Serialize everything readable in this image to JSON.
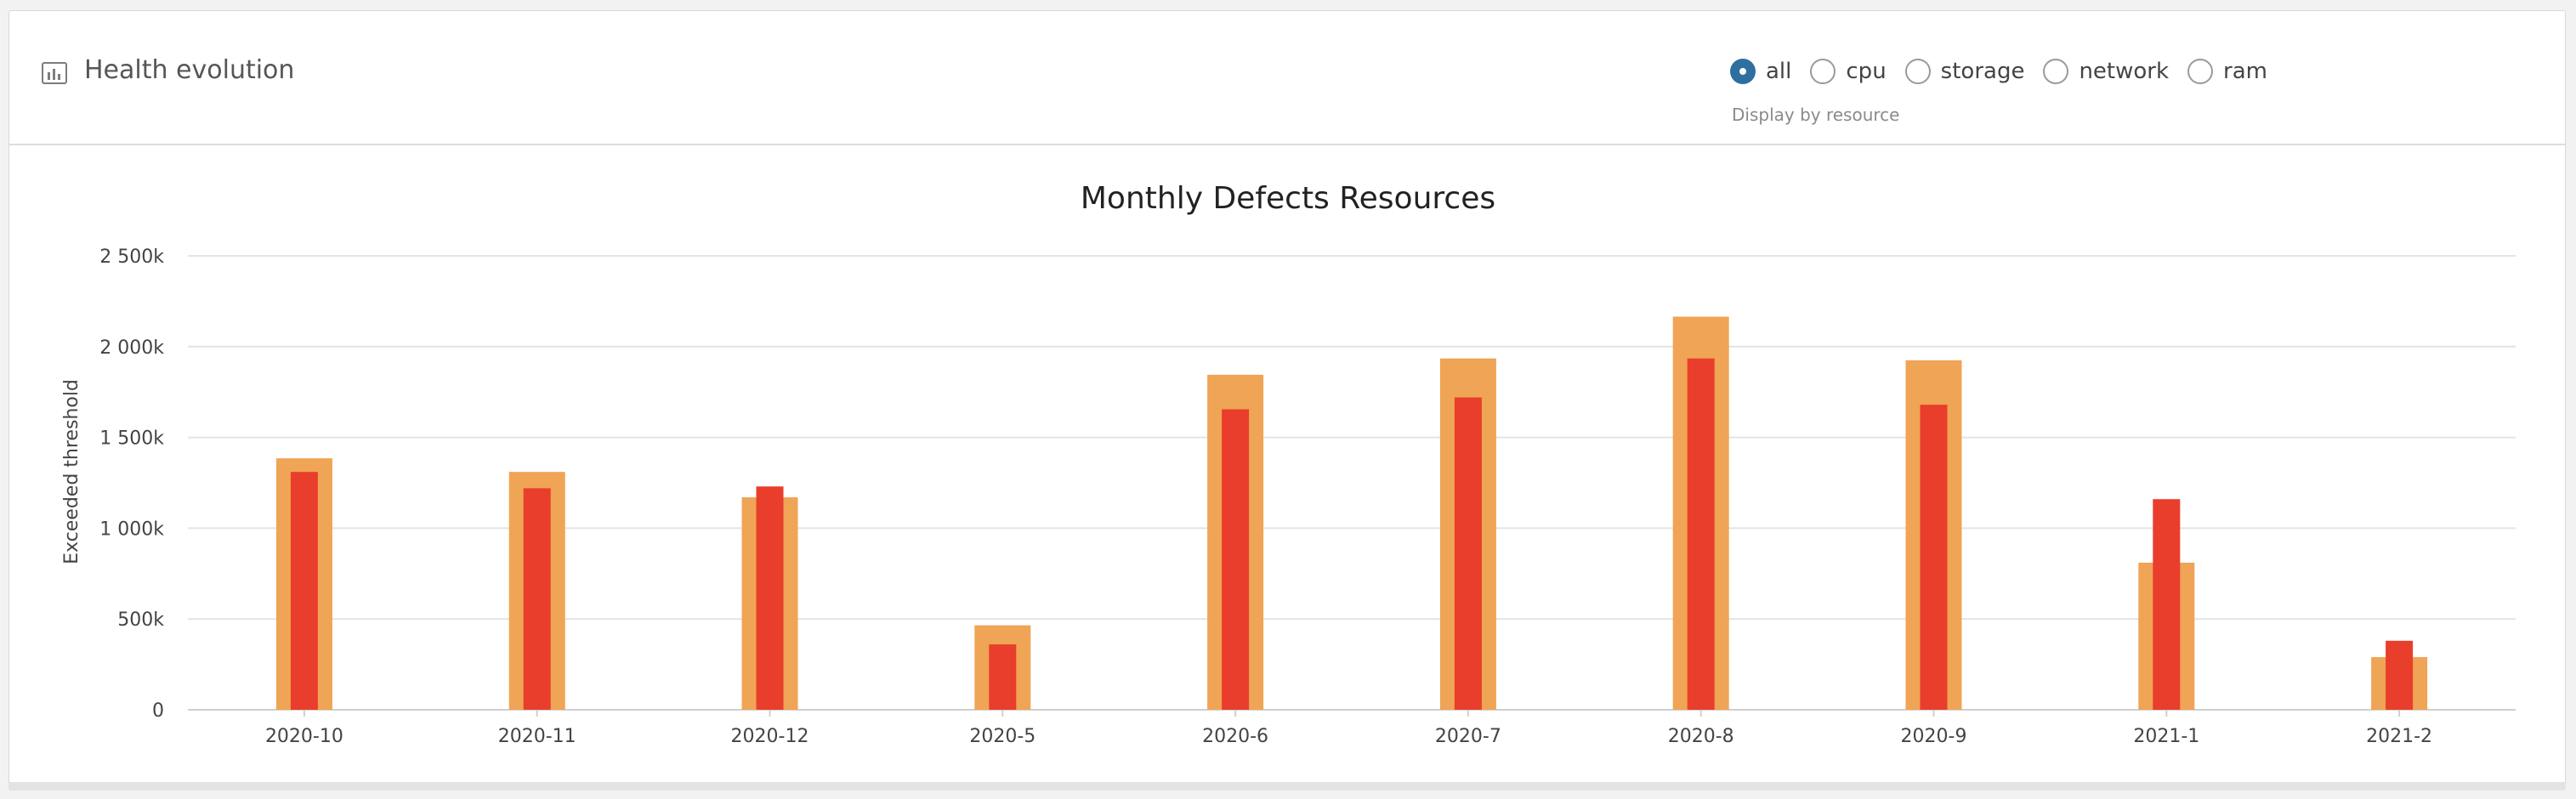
{
  "header": {
    "icon": "bar-chart-icon",
    "title": "Health evolution"
  },
  "resource_filter": {
    "options": [
      {
        "label": "all",
        "checked": true
      },
      {
        "label": "cpu",
        "checked": false
      },
      {
        "label": "storage",
        "checked": false
      },
      {
        "label": "network",
        "checked": false
      },
      {
        "label": "ram",
        "checked": false
      }
    ],
    "help_text": "Display by resource"
  },
  "colors": {
    "series_wide": "#f0a455",
    "series_narrow": "#e93e2c",
    "accent": "#2f6fa0",
    "grid": "#e4e4e4"
  },
  "chart_data": {
    "type": "bar",
    "title": "Monthly Defects Resources",
    "xlabel": "",
    "ylabel": "Exceeded threshold",
    "ylim": [
      0,
      2500000
    ],
    "yticks": [
      0,
      500000,
      1000000,
      1500000,
      2000000,
      2500000
    ],
    "ytick_labels": [
      "0",
      "500k",
      "1 000k",
      "1 500k",
      "2 000k",
      "2 500k"
    ],
    "grid": true,
    "categories": [
      "2020-10",
      "2020-11",
      "2020-12",
      "2020-5",
      "2020-6",
      "2020-7",
      "2020-8",
      "2020-9",
      "2021-1",
      "2021-2"
    ],
    "series": [
      {
        "values": [
          1385000,
          1310000,
          1170000,
          465000,
          1845000,
          1935000,
          2165000,
          1925000,
          810000,
          290000
        ]
      },
      {
        "values": [
          1310000,
          1220000,
          1230000,
          360000,
          1655000,
          1720000,
          1935000,
          1680000,
          1160000,
          380000
        ]
      }
    ]
  }
}
